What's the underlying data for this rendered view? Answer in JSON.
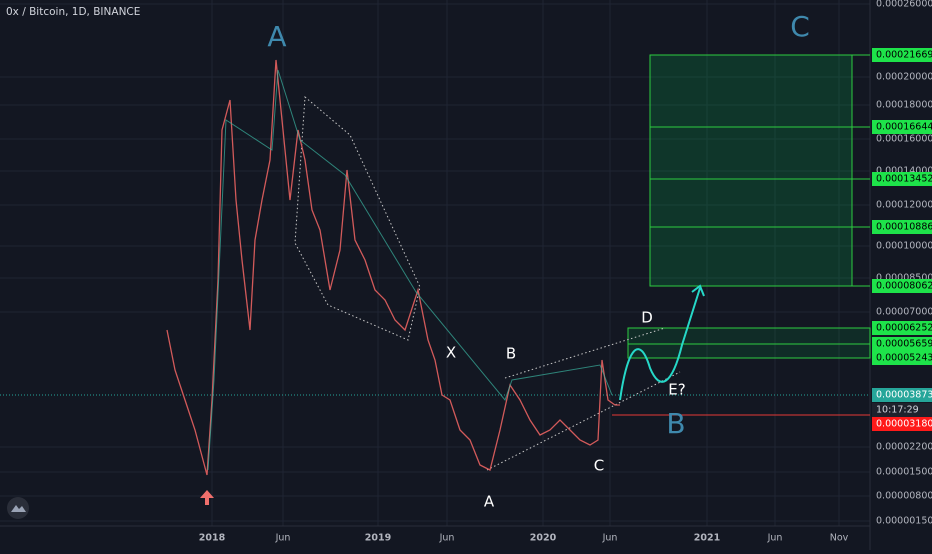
{
  "header": {
    "title": "0x / Bitcoin, 1D, BINANCE"
  },
  "y_axis": {
    "labels": [
      "0.00026000",
      "0.00020000",
      "0.00018000",
      "0.00016000",
      "0.00014000",
      "0.00012000",
      "0.00010000",
      "0.00008500",
      "0.00007000",
      "0.00002200",
      "0.00001500",
      "0.00000800",
      "0.00000150"
    ]
  },
  "x_axis": {
    "labels": [
      "2018",
      "Jun",
      "2019",
      "Jun",
      "2020",
      "Jun",
      "2021",
      "Jun",
      "Nov"
    ]
  },
  "price_tags": {
    "targets": [
      "0.00021669",
      "0.00016644",
      "0.00013452",
      "0.00010886",
      "0.00008062",
      "0.00006252",
      "0.00005659",
      "0.00005243"
    ],
    "last_price": "0.00003873",
    "countdown": "10:17:29",
    "stop": "0.00003180"
  },
  "annotations": {
    "wave_big": [
      "A",
      "B",
      "C"
    ],
    "wave_small": [
      "X",
      "B",
      "A",
      "C",
      "D",
      "E?"
    ]
  }
}
